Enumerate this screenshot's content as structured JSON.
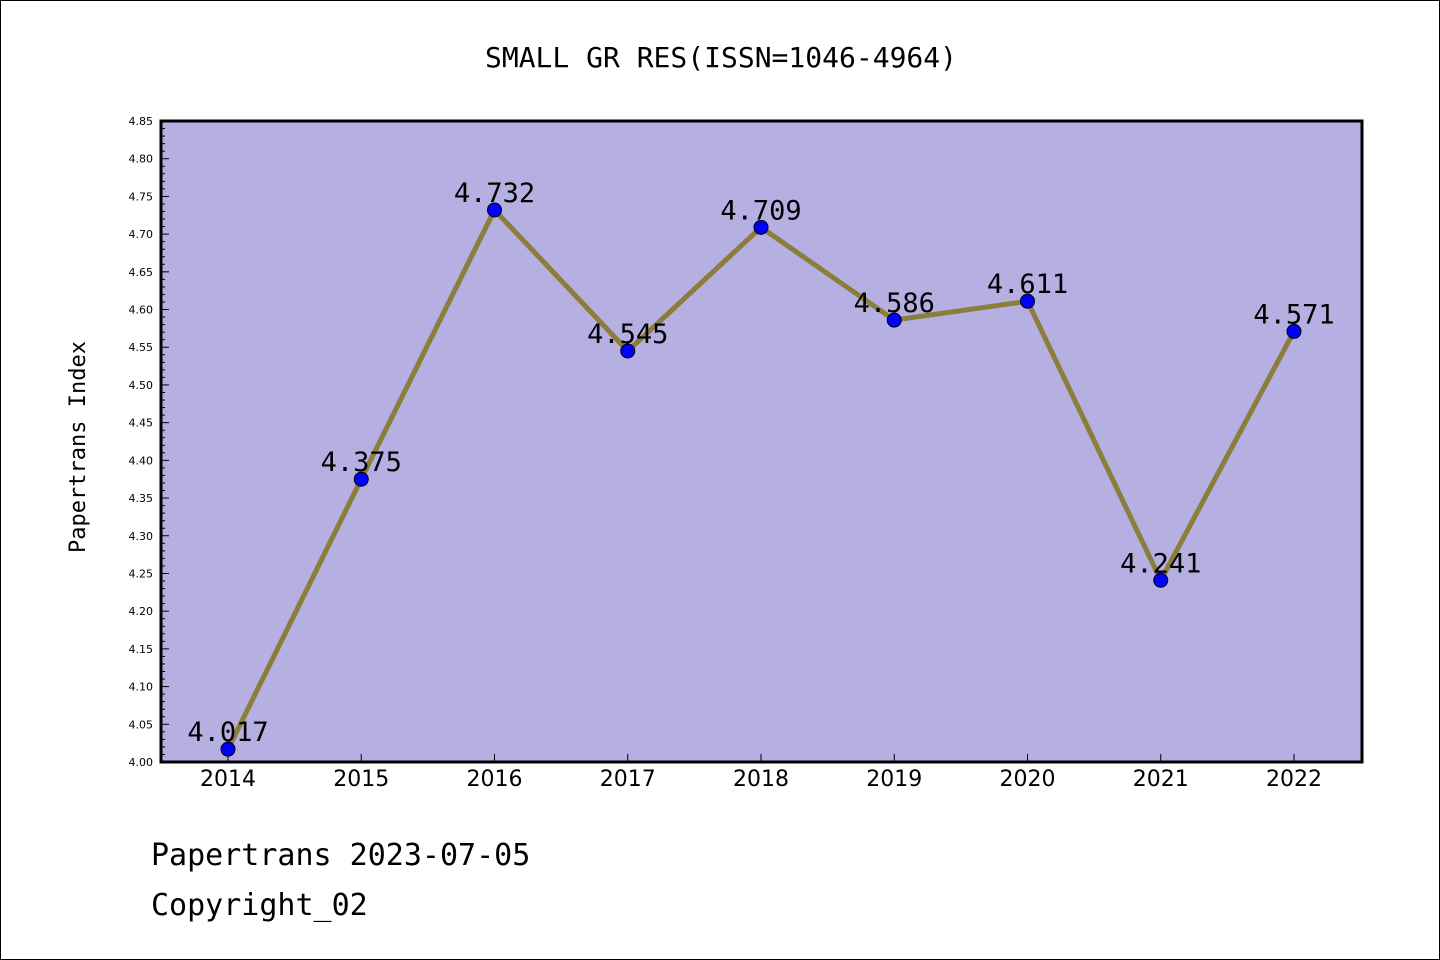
{
  "chart_data": {
    "type": "line",
    "title": "SMALL GR RES(ISSN=1046-4964)",
    "xlabel": "",
    "ylabel": "Papertrans Index",
    "categories": [
      "2014",
      "2015",
      "2016",
      "2017",
      "2018",
      "2019",
      "2020",
      "2021",
      "2022"
    ],
    "values": [
      4.017,
      4.375,
      4.732,
      4.545,
      4.709,
      4.586,
      4.611,
      4.241,
      4.571
    ],
    "data_labels": [
      "4.017",
      "4.375",
      "4.732",
      "4.545",
      "4.709",
      "4.586",
      "4.611",
      "4.241",
      "4.571"
    ],
    "ylim": [
      4.0,
      4.85
    ],
    "yticks": [
      "4.00",
      "4.05",
      "4.10",
      "4.15",
      "4.20",
      "4.25",
      "4.30",
      "4.35",
      "4.40",
      "4.45",
      "4.50",
      "4.55",
      "4.60",
      "4.65",
      "4.70",
      "4.75",
      "4.80",
      "4.85"
    ],
    "grid": false,
    "legend": "none"
  },
  "colors": {
    "plot_background": "#b5afe2",
    "line": "#8b7d3a",
    "marker": "#0000ff",
    "axis": "#000000"
  },
  "footer": {
    "line1": "Papertrans 2023-07-05",
    "line2": "Copyright_02"
  }
}
